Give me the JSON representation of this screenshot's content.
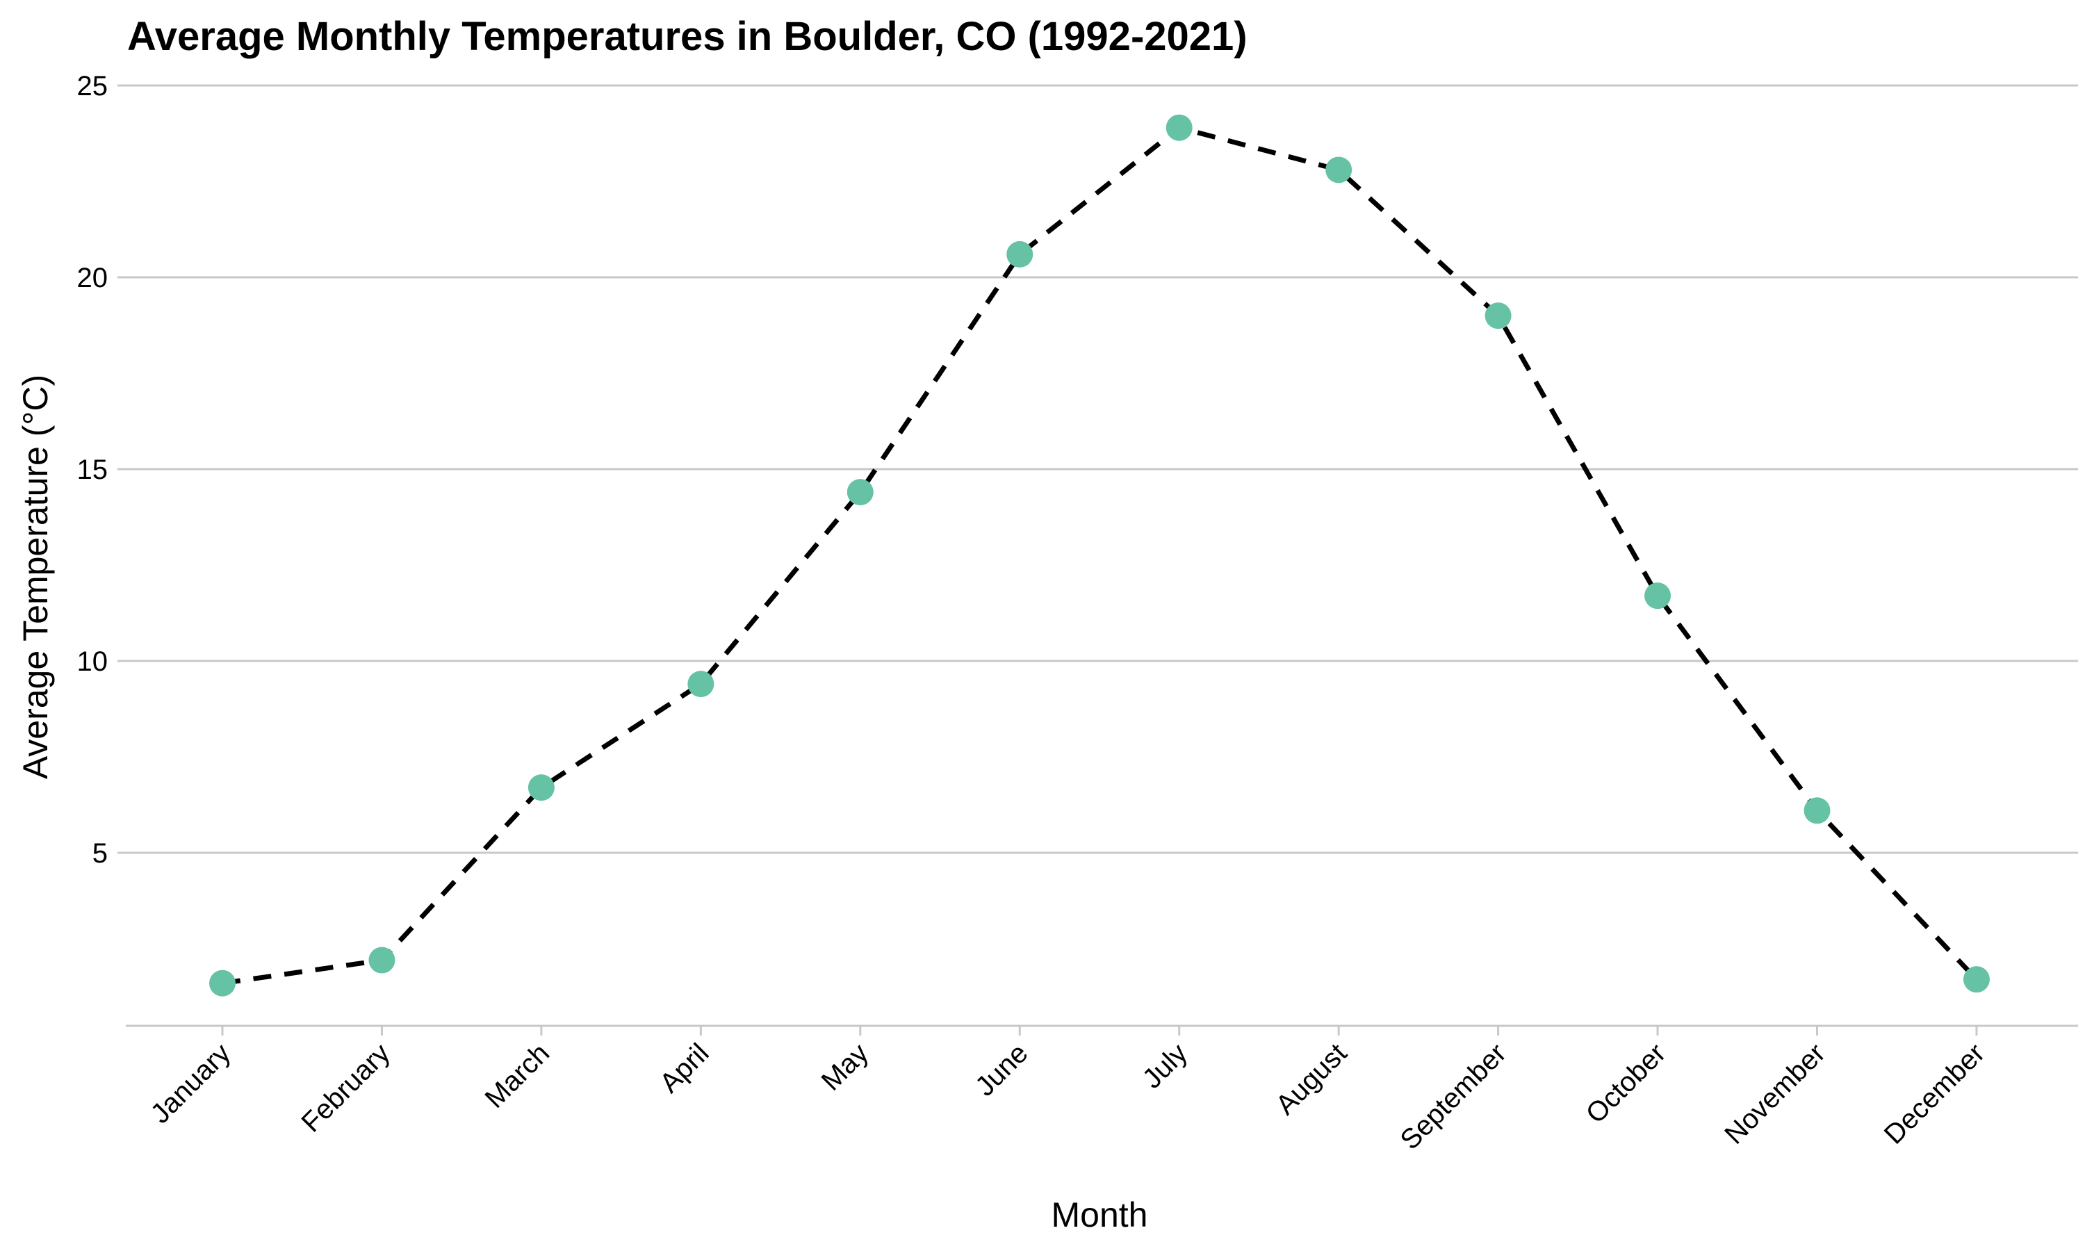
{
  "chart_data": {
    "type": "line",
    "title": "Average Monthly Temperatures in Boulder, CO (1992-2021)",
    "xlabel": "Month",
    "ylabel": "Average Temperature (°C)",
    "categories": [
      "January",
      "February",
      "March",
      "April",
      "May",
      "June",
      "July",
      "August",
      "September",
      "October",
      "November",
      "December"
    ],
    "values": [
      1.6,
      2.2,
      6.7,
      9.4,
      14.4,
      20.6,
      23.9,
      22.8,
      19.0,
      11.7,
      6.1,
      1.7
    ],
    "ylim": [
      0.5,
      25
    ],
    "yticks": [
      5,
      10,
      15,
      20,
      25
    ],
    "grid": true,
    "line_style": "dashed",
    "colors": {
      "line": "#000000",
      "marker": "#66c2a5",
      "grid": "#c8c8c8"
    }
  }
}
